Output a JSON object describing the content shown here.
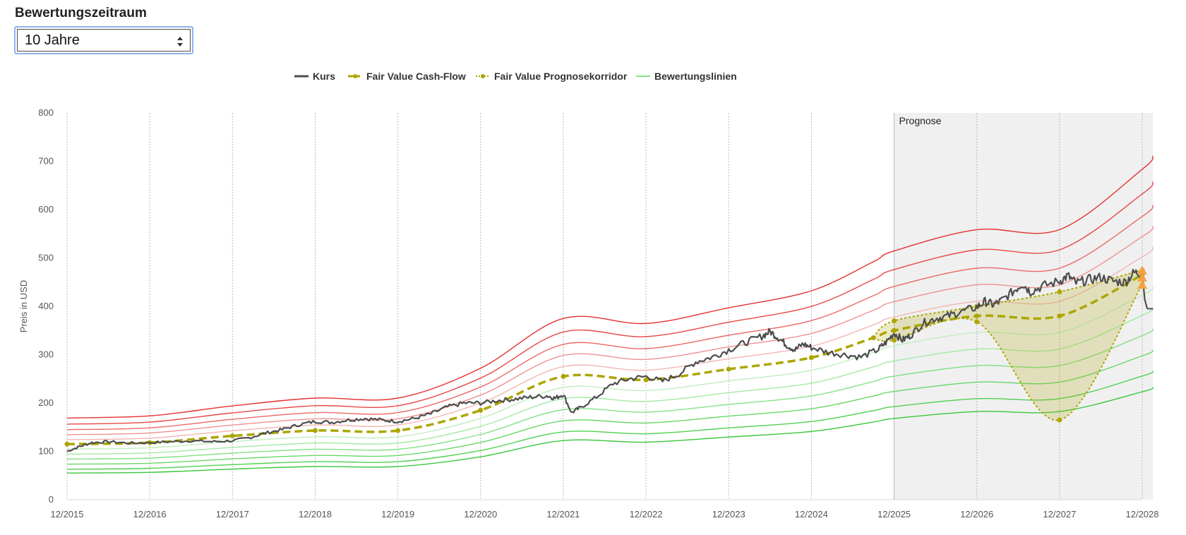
{
  "selector": {
    "heading": "Bewertungszeitraum",
    "selected": "10 Jahre"
  },
  "legend": [
    {
      "label": "Kurs",
      "color": "#4d4d4d",
      "style": "solid"
    },
    {
      "label": "Fair Value Cash-Flow",
      "color": "#aca600",
      "style": "dashed"
    },
    {
      "label": "Fair Value Prognosekorridor",
      "color": "#aca600",
      "style": "dotted"
    },
    {
      "label": "Bewertungslinien",
      "color": "#58d858",
      "style": "solid"
    }
  ],
  "chart_data": {
    "type": "line",
    "ylabel": "Preis in USD",
    "xlabel": "",
    "ylim": [
      0,
      800
    ],
    "yticks": [
      0,
      100,
      200,
      300,
      400,
      500,
      600,
      700,
      800
    ],
    "xlim": [
      2015,
      2028
    ],
    "xticks": [
      "12/2015",
      "12/2016",
      "12/2017",
      "12/2018",
      "12/2019",
      "12/2020",
      "12/2021",
      "12/2022",
      "12/2023",
      "12/2024",
      "12/2025",
      "12/2026",
      "12/2027",
      "12/2028"
    ],
    "forecast_region": {
      "label": "Prognose",
      "from": 2025,
      "to": 2028.13
    },
    "series": [
      {
        "name": "Kurs",
        "points": [
          [
            2015,
            100
          ],
          [
            2015.15,
            110
          ],
          [
            2015.3,
            118
          ],
          [
            2015.5,
            120
          ],
          [
            2015.75,
            117
          ],
          [
            2016,
            118
          ],
          [
            2016.25,
            120
          ],
          [
            2016.5,
            122
          ],
          [
            2016.75,
            120
          ],
          [
            2017,
            122
          ],
          [
            2017.2,
            128
          ],
          [
            2017.4,
            138
          ],
          [
            2017.6,
            145
          ],
          [
            2017.8,
            155
          ],
          [
            2018,
            162
          ],
          [
            2018.2,
            160
          ],
          [
            2018.4,
            165
          ],
          [
            2018.6,
            168
          ],
          [
            2018.8,
            165
          ],
          [
            2019,
            162
          ],
          [
            2019.2,
            168
          ],
          [
            2019.4,
            178
          ],
          [
            2019.6,
            192
          ],
          [
            2019.8,
            200
          ],
          [
            2020,
            200
          ],
          [
            2020.2,
            205
          ],
          [
            2020.4,
            208
          ],
          [
            2020.6,
            212
          ],
          [
            2020.8,
            215
          ],
          [
            2020.9,
            210
          ],
          [
            2021,
            218
          ],
          [
            2021.1,
            180
          ],
          [
            2021.2,
            190
          ],
          [
            2021.4,
            212
          ],
          [
            2021.6,
            240
          ],
          [
            2021.8,
            250
          ],
          [
            2022,
            255
          ],
          [
            2022.2,
            245
          ],
          [
            2022.4,
            260
          ],
          [
            2022.6,
            285
          ],
          [
            2022.8,
            295
          ],
          [
            2023,
            310
          ],
          [
            2023.2,
            325
          ],
          [
            2023.4,
            338
          ],
          [
            2023.5,
            348
          ],
          [
            2023.6,
            335
          ],
          [
            2023.7,
            320
          ],
          [
            2023.8,
            310
          ],
          [
            2023.9,
            322
          ],
          [
            2024,
            315
          ],
          [
            2024.2,
            305
          ],
          [
            2024.4,
            300
          ],
          [
            2024.6,
            295
          ],
          [
            2024.8,
            310
          ],
          [
            2024.9,
            325
          ],
          [
            2025,
            345
          ],
          [
            2025.1,
            330
          ],
          [
            2025.2,
            340
          ],
          [
            2025.35,
            365
          ],
          [
            2025.5,
            375
          ],
          [
            2025.65,
            380
          ],
          [
            2025.8,
            388
          ],
          [
            2026,
            398
          ],
          [
            2026.1,
            410
          ],
          [
            2026.2,
            403
          ],
          [
            2026.3,
            412
          ],
          [
            2026.45,
            432
          ],
          [
            2026.55,
            447
          ],
          [
            2026.65,
            430
          ],
          [
            2026.8,
            442
          ],
          [
            2027,
            452
          ],
          [
            2027.1,
            463
          ],
          [
            2027.2,
            448
          ],
          [
            2027.35,
            455
          ],
          [
            2027.5,
            460
          ],
          [
            2027.65,
            452
          ],
          [
            2027.8,
            450
          ],
          [
            2027.9,
            470
          ],
          [
            2028,
            468
          ]
        ],
        "flat_after": {
          "value": 395,
          "to": 2028.13
        }
      },
      {
        "name": "Fair Value Cash-Flow",
        "points": [
          [
            2015,
            115
          ],
          [
            2016,
            118
          ],
          [
            2017,
            132
          ],
          [
            2018,
            143
          ],
          [
            2019,
            143
          ],
          [
            2020,
            185
          ],
          [
            2021,
            255
          ],
          [
            2022,
            248
          ],
          [
            2023,
            270
          ],
          [
            2024,
            294
          ],
          [
            2024.75,
            335
          ],
          [
            2025,
            350
          ],
          [
            2026,
            380
          ],
          [
            2027,
            380
          ],
          [
            2028,
            465
          ]
        ]
      },
      {
        "name": "Fair Value Prognosekorridor",
        "upper": [
          [
            2024.75,
            335
          ],
          [
            2025,
            370
          ],
          [
            2026,
            400
          ],
          [
            2027,
            430
          ],
          [
            2028,
            475
          ]
        ],
        "lower": [
          [
            2024.75,
            335
          ],
          [
            2025,
            330
          ],
          [
            2026,
            368
          ],
          [
            2027,
            165
          ],
          [
            2028,
            445
          ]
        ]
      },
      {
        "name": "Bewertungslinien",
        "multipliers": [
          1.47,
          1.36,
          1.26,
          1.17,
          1.08,
          0.91,
          0.82,
          0.73,
          0.64,
          0.55,
          0.48
        ],
        "colors": [
          "#e53030",
          "#e84848",
          "#ec6868",
          "#f09090",
          "#f4b4b4",
          "#bfeebf",
          "#a4e8a4",
          "#86e086",
          "#68d868",
          "#50d050",
          "#38c838"
        ]
      }
    ],
    "forecast_markers": [
      {
        "x": 2028,
        "y": 475
      },
      {
        "x": 2028,
        "y": 460
      },
      {
        "x": 2028,
        "y": 445
      }
    ]
  }
}
